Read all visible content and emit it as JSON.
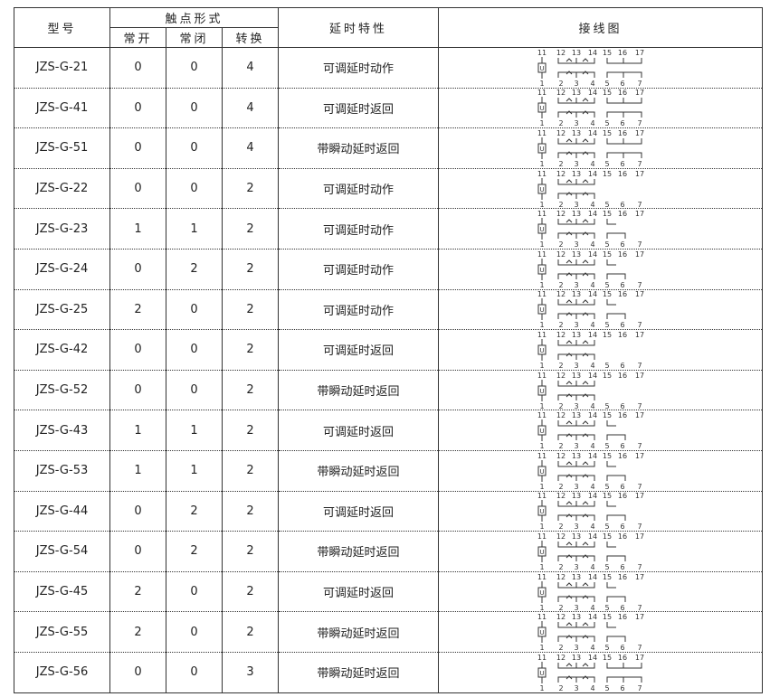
{
  "header": {
    "model": "型号",
    "contact_form": "触点形式",
    "no": "常开",
    "nc": "常闭",
    "changeover": "转换",
    "delay": "延时特性",
    "wiring": "接线图"
  },
  "rows": [
    {
      "model": "JZS-G-21",
      "no": "0",
      "nc": "0",
      "co": "4",
      "delay": "可调延时动作"
    },
    {
      "model": "JZS-G-41",
      "no": "0",
      "nc": "0",
      "co": "4",
      "delay": "可调延时返回"
    },
    {
      "model": "JZS-G-51",
      "no": "0",
      "nc": "0",
      "co": "4",
      "delay": "带瞬动延时返回"
    },
    {
      "model": "JZS-G-22",
      "no": "0",
      "nc": "0",
      "co": "2",
      "delay": "可调延时动作"
    },
    {
      "model": "JZS-G-23",
      "no": "1",
      "nc": "1",
      "co": "2",
      "delay": "可调延时动作"
    },
    {
      "model": "JZS-G-24",
      "no": "0",
      "nc": "2",
      "co": "2",
      "delay": "可调延时动作"
    },
    {
      "model": "JZS-G-25",
      "no": "2",
      "nc": "0",
      "co": "2",
      "delay": "可调延时动作"
    },
    {
      "model": "JZS-G-42",
      "no": "0",
      "nc": "0",
      "co": "2",
      "delay": "可调延时返回"
    },
    {
      "model": "JZS-G-52",
      "no": "0",
      "nc": "0",
      "co": "2",
      "delay": "带瞬动延时返回"
    },
    {
      "model": "JZS-G-43",
      "no": "1",
      "nc": "1",
      "co": "2",
      "delay": "可调延时返回"
    },
    {
      "model": "JZS-G-53",
      "no": "1",
      "nc": "1",
      "co": "2",
      "delay": "带瞬动延时返回"
    },
    {
      "model": "JZS-G-44",
      "no": "0",
      "nc": "2",
      "co": "2",
      "delay": "可调延时返回"
    },
    {
      "model": "JZS-G-54",
      "no": "0",
      "nc": "2",
      "co": "2",
      "delay": "带瞬动延时返回"
    },
    {
      "model": "JZS-G-45",
      "no": "2",
      "nc": "0",
      "co": "2",
      "delay": "可调延时返回"
    },
    {
      "model": "JZS-G-55",
      "no": "2",
      "nc": "0",
      "co": "2",
      "delay": "带瞬动延时返回"
    },
    {
      "model": "JZS-G-56",
      "no": "0",
      "nc": "0",
      "co": "3",
      "delay": "带瞬动延时返回"
    }
  ],
  "terminals": {
    "top": [
      "11",
      "12",
      "13",
      "14",
      "15",
      "16",
      "17"
    ],
    "bottom": [
      "1",
      "2",
      "3",
      "4",
      "5",
      "6",
      "7"
    ]
  },
  "coil_label": "U"
}
